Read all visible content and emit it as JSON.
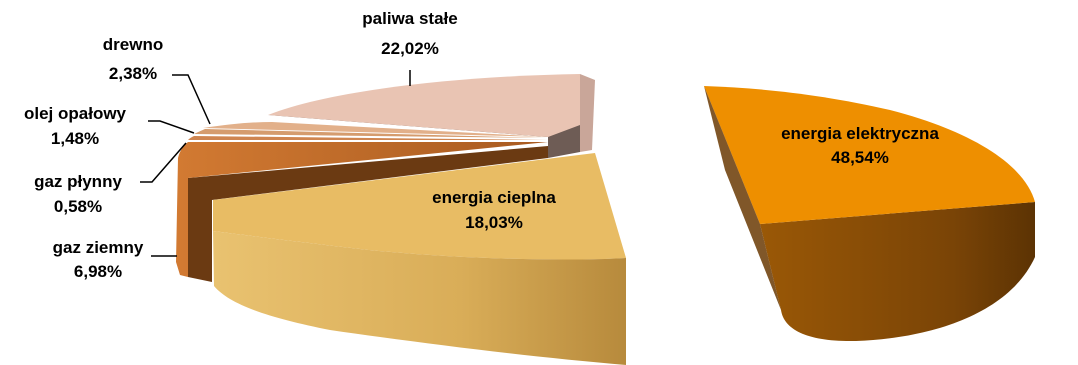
{
  "chart_data": {
    "type": "pie",
    "style": "3d-exploded",
    "title": "",
    "slices": [
      {
        "label": "energia elektryczna",
        "value_label": "48,54%",
        "value": 48.54,
        "color": "#ee8f00"
      },
      {
        "label": "energia cieplna",
        "value_label": "18,03%",
        "value": 18.03,
        "color": "#e8bc64"
      },
      {
        "label": "gaz ziemny",
        "value_label": "6,98%",
        "value": 6.98,
        "color": "#d7813c"
      },
      {
        "label": "gaz płynny",
        "value_label": "0,58%",
        "value": 0.58,
        "color": "#d48a54"
      },
      {
        "label": "olej opałowy",
        "value_label": "1,48%",
        "value": 1.48,
        "color": "#d59c6e"
      },
      {
        "label": "drewno",
        "value_label": "2,38%",
        "value": 2.38,
        "color": "#e2b08a"
      },
      {
        "label": "paliwa stałe",
        "value_label": "22,02%",
        "value": 22.02,
        "color": "#e9c4b3"
      }
    ]
  }
}
